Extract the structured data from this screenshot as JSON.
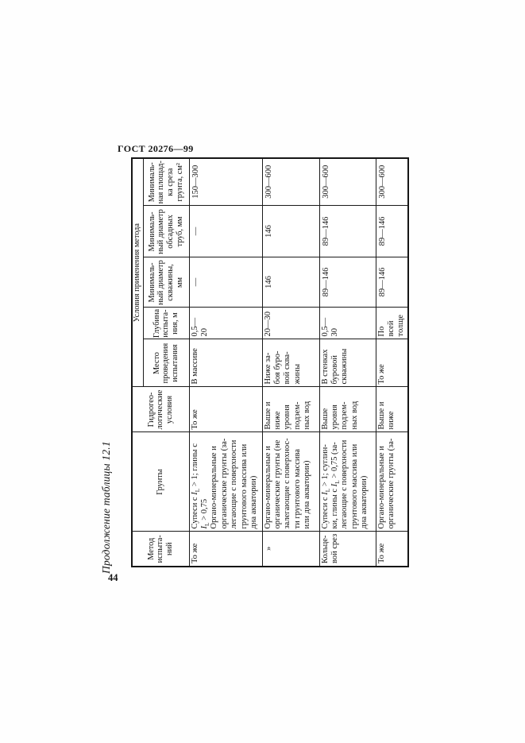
{
  "page": {
    "standard": "ГОСТ 20276—99",
    "number": "44",
    "table_caption": "Продолжение таблицы 12.1"
  },
  "table": {
    "headers": {
      "method": "Метод\nиспыта-\nний",
      "soils": "Грунты",
      "hydro": "Гидрогео-\nлогические\nусловия",
      "conditions_group": "Условия применения метода",
      "place": "Место\nпроведения\nиспытания",
      "depth": "Глубина\nиспыта-\nния, м",
      "borehole_diameter": "Минималь-\nный диаметр\nскважины,\nмм",
      "casing_diameter": "Минималь-\nный диаметр\nобсадных\nтруб, мм",
      "shear_area": "Минималь-\nная площад-\nка среза\nгрунта, см²"
    },
    "rows": [
      {
        "method": "То же",
        "soils": "Супеси с *I*~L~ > 1; глины с\n*I*~L~ > 0,75\nОргано-минеральные и\nорганические грунты (за-\nлегающие с поверхности\nгрунтового массива или\nдна акватории)",
        "hydro": "То же",
        "place": "В массиве",
        "depth": "0,5—20",
        "borehole_diameter": "—",
        "casing_diameter": "—",
        "shear_area": "150—300"
      },
      {
        "method": "»",
        "soils": "Органо-минеральные и\nорганические грунты (не\nзалегающие с поверхнос-\nти грунтового массива\nили дна акватории)",
        "hydro": "Выше и\nниже\nуровня\nподзем-\nных вод",
        "place": "Ниже за-\nбоя буро-\nвой сква-\nжины",
        "depth": "20—30",
        "borehole_diameter": "146",
        "casing_diameter": "146",
        "shear_area": "300—600"
      },
      {
        "method": "Кольце-\nвой срез",
        "soils": "Супеси с *I*~L~ > 1; суглин-\nки, глины с *I*~L~ > 0,75 (за-\nлегающие с поверхности\nгрунтового массива или\nдна акватории)",
        "hydro": "Выше\nуровня\nподзем-\nных вод",
        "place": "В стенках\nбуровой\nскважины",
        "depth": "0,5—30",
        "borehole_diameter": "89—146",
        "casing_diameter": "89—146",
        "shear_area": "300—600"
      },
      {
        "method": "То же",
        "soils": "Органо-минеральные и\nорганические грунты (за-",
        "hydro": "Выше и\nниже",
        "place": "То же",
        "depth": "По всей\nтолще",
        "borehole_diameter": "89—146",
        "casing_diameter": "89—146",
        "shear_area": "300—600"
      }
    ]
  }
}
